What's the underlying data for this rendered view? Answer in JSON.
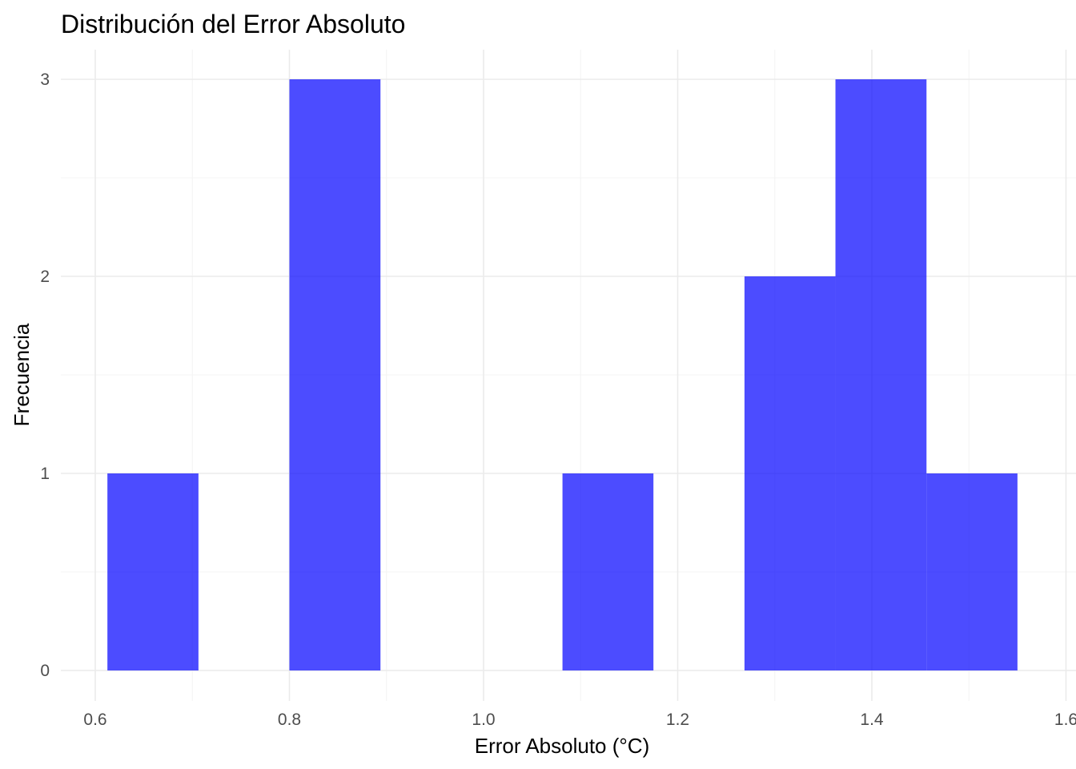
{
  "chart_data": {
    "type": "bar",
    "subtype": "histogram",
    "title": "Distribución del Error Absoluto",
    "xlabel": "Error Absoluto (°C)",
    "ylabel": "Frecuencia",
    "bins": [
      {
        "x0": 0.6125,
        "x1": 0.7063,
        "count": 1
      },
      {
        "x0": 0.8,
        "x1": 0.8938,
        "count": 3
      },
      {
        "x0": 1.0813,
        "x1": 1.175,
        "count": 1
      },
      {
        "x0": 1.2688,
        "x1": 1.3625,
        "count": 2
      },
      {
        "x0": 1.3625,
        "x1": 1.4563,
        "count": 3
      },
      {
        "x0": 1.4563,
        "x1": 1.55,
        "count": 1
      }
    ],
    "xticks": [
      "0.6",
      "0.8",
      "1.0",
      "1.2",
      "1.4",
      "1.6"
    ],
    "yticks": [
      "0",
      "1",
      "2",
      "3"
    ],
    "xlim": [
      0.5708,
      1.6
    ],
    "ylim": [
      0,
      3
    ],
    "grid": true,
    "legend": "none",
    "colors": {
      "bar_fill": "#0000ff",
      "bar_opacity": 0.7,
      "grid_major": "#ebebeb",
      "grid_minor": "#f4f4f4",
      "tick_text": "#4d4d4d",
      "title_text": "#000000"
    }
  }
}
